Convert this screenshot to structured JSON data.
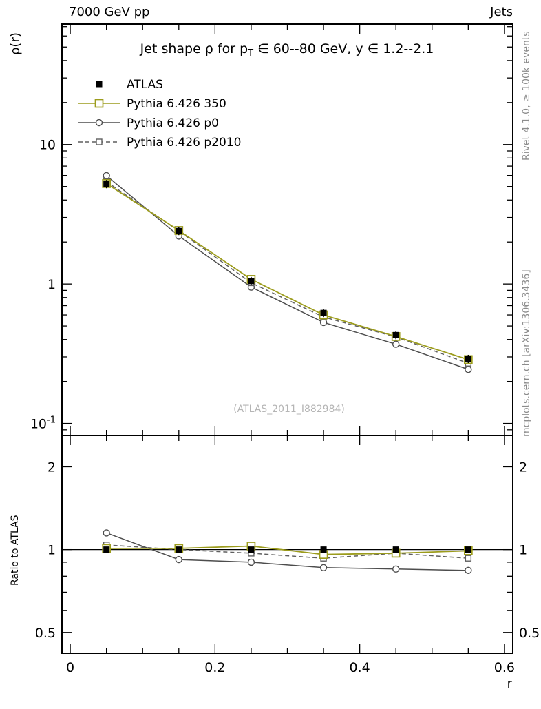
{
  "chart_data": {
    "type": "line",
    "top_left": "7000 GeV pp",
    "top_right": "Jets",
    "title_parts": [
      {
        "t": "Jet shape ρ for p"
      },
      {
        "t": "T",
        "sub": true
      },
      {
        "t": " ∈ 60--80 GeV,  y ∈ 1.2--2.1"
      }
    ],
    "ylabel": "ρ(r)",
    "xlabel": "r",
    "ratio_ylabel": "Ratio to ATLAS",
    "watermark": "(ATLAS_2011_I882984)",
    "right_label_top": "Rivet 4.1.0, ≥ 100k events",
    "right_label_bottom": "mcplots.cern.ch [arXiv:1306.3436]",
    "x": [
      0.05,
      0.15,
      0.25,
      0.35,
      0.45,
      0.55
    ],
    "xlim": [
      -0.0115,
      0.6115
    ],
    "x_major_ticks": [
      {
        "v": 0,
        "label": "0"
      },
      {
        "v": 0.2,
        "label": "0.2"
      },
      {
        "v": 0.4,
        "label": "0.4"
      },
      {
        "v": 0.6,
        "label": "0.6"
      }
    ],
    "x_minor_step": 0.05,
    "main_panel": {
      "yscale": "log",
      "ylim": [
        0.082,
        73
      ],
      "yticks": [
        {
          "v": 10,
          "label": "10"
        },
        {
          "v": 1,
          "label": "1"
        },
        {
          "v": 0.1,
          "label": "10",
          "sup": "-1"
        }
      ]
    },
    "ratio_panel": {
      "yscale": "log",
      "ylim": [
        0.42,
        2.6
      ],
      "yticks": [
        {
          "v": 2,
          "label": "2"
        },
        {
          "v": 1,
          "label": "1"
        },
        {
          "v": 0.5,
          "label": "0.5"
        }
      ],
      "reference_line": 1
    },
    "series": [
      {
        "name": "ATLAS",
        "role": "data",
        "color": "#000000",
        "marker": "square-filled",
        "line": "none",
        "values": [
          5.2,
          2.4,
          1.05,
          0.62,
          0.43,
          0.29
        ],
        "ratio": [
          1.0,
          1.0,
          1.0,
          1.0,
          1.0,
          1.0
        ]
      },
      {
        "name": "Pythia 6.426 350",
        "role": "mc",
        "color": "#9c9c1c",
        "marker": "square-open",
        "line": "solid",
        "values": [
          5.25,
          2.42,
          1.08,
          0.6,
          0.42,
          0.287
        ],
        "ratio": [
          1.01,
          1.01,
          1.03,
          0.96,
          0.97,
          0.99
        ]
      },
      {
        "name": "Pythia 6.426 p0",
        "role": "mc",
        "color": "#4d4d4d",
        "marker": "circle-open",
        "line": "solid",
        "values": [
          5.98,
          2.21,
          0.95,
          0.53,
          0.37,
          0.244
        ],
        "ratio": [
          1.15,
          0.92,
          0.9,
          0.86,
          0.85,
          0.84
        ]
      },
      {
        "name": "Pythia 6.426 p2010",
        "role": "mc",
        "color": "#5f5f5f",
        "marker": "square-open-small",
        "line": "dashed",
        "values": [
          5.41,
          2.4,
          1.02,
          0.58,
          0.417,
          0.27
        ],
        "ratio": [
          1.04,
          1.0,
          0.97,
          0.93,
          0.97,
          0.93
        ]
      }
    ]
  }
}
